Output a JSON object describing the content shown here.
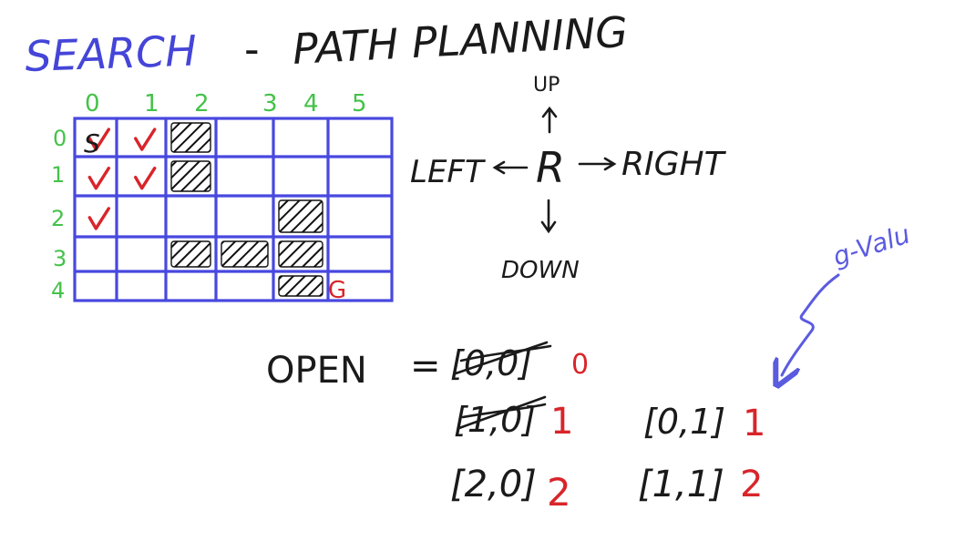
{
  "heading": {
    "title": "SEARCH",
    "dash": "-",
    "subtitle": "PATH PLANNING"
  },
  "grid": {
    "col_labels": [
      "0",
      "1",
      "2",
      "3",
      "4",
      "5"
    ],
    "row_labels": [
      "0",
      "1",
      "2",
      "3",
      "4"
    ],
    "start_label": "S",
    "goal_label": "G",
    "obstacle_cells": [
      [
        0,
        2
      ],
      [
        1,
        2
      ],
      [
        2,
        4
      ],
      [
        3,
        2
      ],
      [
        3,
        3
      ],
      [
        3,
        4
      ],
      [
        4,
        4
      ]
    ],
    "checked_cells": [
      [
        0,
        0
      ],
      [
        0,
        1
      ],
      [
        1,
        0
      ],
      [
        1,
        1
      ],
      [
        2,
        0
      ]
    ],
    "start_cell": [
      0,
      0
    ],
    "goal_cell": [
      4,
      5
    ]
  },
  "directions": {
    "center": "R",
    "up": "UP",
    "down": "DOWN",
    "left": "LEFT",
    "right": "RIGHT"
  },
  "open_list": {
    "label": "OPEN",
    "equals": "=",
    "entries": [
      {
        "coord": "[0,0]",
        "g": "0",
        "crossed": true
      },
      {
        "coord": "[1,0]",
        "g": "1",
        "crossed": true
      },
      {
        "coord": "[0,1]",
        "g": "1",
        "crossed": false
      },
      {
        "coord": "[2,0]",
        "g": "2",
        "crossed": false
      },
      {
        "coord": "[1,1]",
        "g": "2",
        "crossed": false
      }
    ]
  },
  "annotation": {
    "text": "g-Valu"
  },
  "colors": {
    "grid": "#4848e0",
    "title": "#4545d8",
    "labels": "#44c24a",
    "g_values": "#d8252a",
    "ink": "#1a1a1a",
    "annotation": "#5b5be0"
  }
}
